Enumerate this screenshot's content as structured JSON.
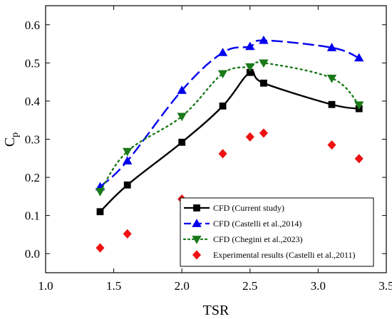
{
  "chart_data": {
    "type": "line",
    "xlabel": "TSR",
    "ylabel_main": "C",
    "ylabel_sub": "p",
    "xlim": [
      1.0,
      3.5
    ],
    "ylim": [
      -0.05,
      0.65
    ],
    "x_ticks": [
      1.0,
      1.5,
      2.0,
      2.5,
      3.0,
      3.5
    ],
    "x_tick_labels": [
      "1.0",
      "1.5",
      "2.0",
      "2.5",
      "3.0",
      "3.5"
    ],
    "y_ticks": [
      0.0,
      0.1,
      0.2,
      0.3,
      0.4,
      0.5,
      0.6
    ],
    "y_tick_labels": [
      "0.0",
      "0.1",
      "0.2",
      "0.3",
      "0.4",
      "0.5",
      "0.6"
    ],
    "grid": false,
    "legend_position": "bottom-right",
    "series": [
      {
        "name": "CFD (Current study)",
        "color": "#000000",
        "line": "solid",
        "marker": "square",
        "x": [
          1.4,
          1.6,
          2.0,
          2.3,
          2.5,
          2.6,
          3.1,
          3.3
        ],
        "y": [
          0.11,
          0.18,
          0.292,
          0.387,
          0.475,
          0.447,
          0.391,
          0.38
        ]
      },
      {
        "name": "CFD (Castelli et al.,2014)",
        "color": "#0000ee",
        "line": "dash",
        "marker": "triangle-up",
        "x": [
          1.4,
          1.6,
          2.0,
          2.3,
          2.5,
          2.6,
          3.1,
          3.3
        ],
        "y": [
          0.175,
          0.243,
          0.428,
          0.527,
          0.543,
          0.559,
          0.54,
          0.513
        ]
      },
      {
        "name": "CFD (Chegini et al.,2023)",
        "color": "#1a7a1a",
        "line": "dot",
        "marker": "triangle-down",
        "x": [
          1.4,
          1.6,
          2.0,
          2.3,
          2.5,
          2.6,
          3.1,
          3.3
        ],
        "y": [
          0.163,
          0.268,
          0.36,
          0.472,
          0.49,
          0.5,
          0.46,
          0.39
        ]
      },
      {
        "name": "Experimental results (Castelli et al.,2011)",
        "color": "#ee1111",
        "line": "none",
        "marker": "diamond",
        "x": [
          1.4,
          1.6,
          2.0,
          2.3,
          2.5,
          2.6,
          3.1,
          3.3
        ],
        "y": [
          0.015,
          0.052,
          0.143,
          0.262,
          0.306,
          0.316,
          0.285,
          0.249
        ]
      }
    ]
  }
}
